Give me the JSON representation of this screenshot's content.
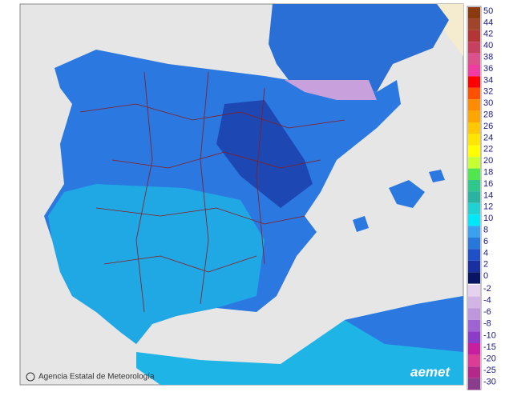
{
  "footer": {
    "credit": "Agencia Estatal de Meteorología",
    "logo": "aemet"
  },
  "legend": {
    "positive": [
      {
        "label": 50,
        "color": "#8b3a0f"
      },
      {
        "label": 44,
        "color": "#a0452a"
      },
      {
        "label": 42,
        "color": "#b43535"
      },
      {
        "label": 40,
        "color": "#c84060"
      },
      {
        "label": 38,
        "color": "#dc508c"
      },
      {
        "label": 36,
        "color": "#f03ca0"
      },
      {
        "label": 34,
        "color": "#ff0000"
      },
      {
        "label": 32,
        "color": "#ff5000"
      },
      {
        "label": 30,
        "color": "#ff8c00"
      },
      {
        "label": 28,
        "color": "#ffa500"
      },
      {
        "label": 26,
        "color": "#ffc800"
      },
      {
        "label": 24,
        "color": "#ffe600"
      },
      {
        "label": 22,
        "color": "#ffff00"
      },
      {
        "label": 20,
        "color": "#c8ff32"
      },
      {
        "label": 18,
        "color": "#50e650"
      },
      {
        "label": 16,
        "color": "#2ec88c"
      },
      {
        "label": 14,
        "color": "#28b4a0"
      },
      {
        "label": 12,
        "color": "#20d2d2"
      },
      {
        "label": 10,
        "color": "#00e6fa"
      },
      {
        "label": 8,
        "color": "#3ca0f0"
      },
      {
        "label": 6,
        "color": "#2878dc"
      },
      {
        "label": 4,
        "color": "#1e50c8"
      },
      {
        "label": 2,
        "color": "#1a2fa0"
      },
      {
        "label": 0,
        "color": "#0a1464"
      }
    ],
    "negative": [
      {
        "label": -2,
        "color": "#e6d2f0"
      },
      {
        "label": -4,
        "color": "#d2b4e6"
      },
      {
        "label": -6,
        "color": "#be96dc"
      },
      {
        "label": -8,
        "color": "#a064d2"
      },
      {
        "label": -10,
        "color": "#8c3cc8"
      },
      {
        "label": -15,
        "color": "#c81ea0"
      },
      {
        "label": -20,
        "color": "#dc3c96"
      },
      {
        "label": -25,
        "color": "#b4288c"
      },
      {
        "label": -30,
        "color": "#8c3c8c"
      }
    ]
  }
}
